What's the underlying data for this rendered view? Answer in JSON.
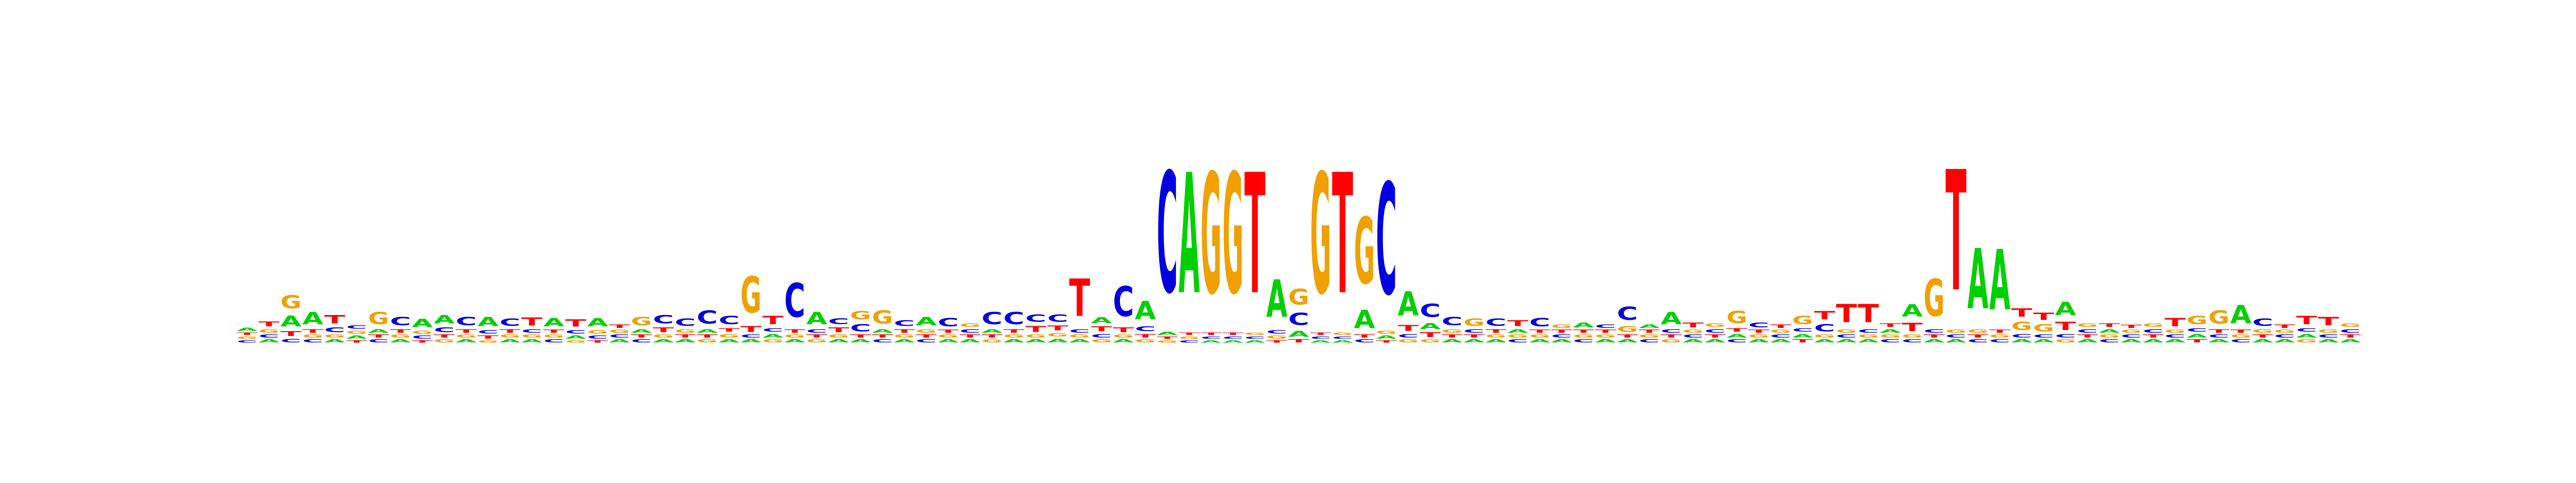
{
  "logo": {
    "type": "sequence-logo",
    "alphabet": [
      "A",
      "C",
      "G",
      "T"
    ],
    "colors": {
      "A": "#00d000",
      "C": "#0000e0",
      "G": "#f0a000",
      "T": "#ff0000"
    },
    "columns": [
      {
        "A": 0.05,
        "C": 0.04,
        "G": 0.04,
        "T": 0.04
      },
      {
        "A": 0.05,
        "C": 0.05,
        "G": 0.06,
        "T": 0.08
      },
      {
        "A": 0.18,
        "C": 0.06,
        "G": 0.22,
        "T": 0.08
      },
      {
        "A": 0.2,
        "C": 0.05,
        "G": 0.05,
        "T": 0.06
      },
      {
        "A": 0.05,
        "C": 0.08,
        "G": 0.05,
        "T": 0.14
      },
      {
        "A": 0.05,
        "C": 0.06,
        "G": 0.05,
        "T": 0.04
      },
      {
        "A": 0.06,
        "C": 0.05,
        "G": 0.2,
        "T": 0.05
      },
      {
        "A": 0.05,
        "C": 0.14,
        "G": 0.05,
        "T": 0.06
      },
      {
        "A": 0.14,
        "C": 0.05,
        "G": 0.05,
        "T": 0.04
      },
      {
        "A": 0.14,
        "C": 0.08,
        "G": 0.05,
        "T": 0.05
      },
      {
        "A": 0.05,
        "C": 0.14,
        "G": 0.05,
        "T": 0.06
      },
      {
        "A": 0.15,
        "C": 0.06,
        "G": 0.04,
        "T": 0.05
      },
      {
        "A": 0.05,
        "C": 0.12,
        "G": 0.05,
        "T": 0.06
      },
      {
        "A": 0.05,
        "C": 0.06,
        "G": 0.05,
        "T": 0.13
      },
      {
        "A": 0.14,
        "C": 0.05,
        "G": 0.05,
        "T": 0.05
      },
      {
        "A": 0.05,
        "C": 0.06,
        "G": 0.04,
        "T": 0.12
      },
      {
        "A": 0.14,
        "C": 0.05,
        "G": 0.06,
        "T": 0.04
      },
      {
        "A": 0.05,
        "C": 0.05,
        "G": 0.05,
        "T": 0.06
      },
      {
        "A": 0.06,
        "C": 0.05,
        "G": 0.14,
        "T": 0.05
      },
      {
        "A": 0.05,
        "C": 0.14,
        "G": 0.05,
        "T": 0.08
      },
      {
        "A": 0.05,
        "C": 0.12,
        "G": 0.06,
        "T": 0.05
      },
      {
        "A": 0.06,
        "C": 0.22,
        "G": 0.05,
        "T": 0.05
      },
      {
        "A": 0.05,
        "C": 0.14,
        "G": 0.06,
        "T": 0.06
      },
      {
        "A": 0.05,
        "C": 0.05,
        "G": 0.6,
        "T": 0.1
      },
      {
        "A": 0.06,
        "C": 0.06,
        "G": 0.05,
        "T": 0.14
      },
      {
        "A": 0.05,
        "C": 0.56,
        "G": 0.05,
        "T": 0.06
      },
      {
        "A": 0.2,
        "C": 0.06,
        "G": 0.05,
        "T": 0.05
      },
      {
        "A": 0.05,
        "C": 0.1,
        "G": 0.05,
        "T": 0.08
      },
      {
        "A": 0.05,
        "C": 0.12,
        "G": 0.14,
        "T": 0.05
      },
      {
        "A": 0.06,
        "C": 0.05,
        "G": 0.22,
        "T": 0.05
      },
      {
        "A": 0.05,
        "C": 0.1,
        "G": 0.05,
        "T": 0.06
      },
      {
        "A": 0.14,
        "C": 0.05,
        "G": 0.06,
        "T": 0.05
      },
      {
        "A": 0.05,
        "C": 0.14,
        "G": 0.05,
        "T": 0.05
      },
      {
        "A": 0.05,
        "C": 0.06,
        "G": 0.06,
        "T": 0.05
      },
      {
        "A": 0.06,
        "C": 0.2,
        "G": 0.05,
        "T": 0.05
      },
      {
        "A": 0.05,
        "C": 0.2,
        "G": 0.05,
        "T": 0.06
      },
      {
        "A": 0.05,
        "C": 0.12,
        "G": 0.05,
        "T": 0.1
      },
      {
        "A": 0.06,
        "C": 0.12,
        "G": 0.06,
        "T": 0.08
      },
      {
        "A": 0.05,
        "C": 0.06,
        "G": 0.05,
        "T": 0.62
      },
      {
        "A": 0.1,
        "C": 0.06,
        "G": 0.05,
        "T": 0.08
      },
      {
        "A": 0.05,
        "C": 0.5,
        "G": 0.05,
        "T": 0.08
      },
      {
        "A": 0.3,
        "C": 0.08,
        "G": 0.05,
        "T": 0.06
      },
      {
        "A": 0.05,
        "C": 2.0,
        "G": 0.04,
        "T": 0.04
      },
      {
        "A": 2.0,
        "C": 0.04,
        "G": 0.04,
        "T": 0.04
      },
      {
        "A": 0.04,
        "C": 0.04,
        "G": 2.0,
        "T": 0.04
      },
      {
        "A": 0.04,
        "C": 0.04,
        "G": 2.0,
        "T": 0.04
      },
      {
        "A": 0.04,
        "C": 0.04,
        "G": 0.04,
        "T": 2.0
      },
      {
        "A": 0.62,
        "C": 0.06,
        "G": 0.05,
        "T": 0.04
      },
      {
        "A": 0.1,
        "C": 0.2,
        "G": 0.26,
        "T": 0.05
      },
      {
        "A": 0.04,
        "C": 0.04,
        "G": 2.0,
        "T": 0.04
      },
      {
        "A": 0.04,
        "C": 0.04,
        "G": 0.04,
        "T": 2.0
      },
      {
        "A": 0.3,
        "C": 0.05,
        "G": 1.1,
        "T": 0.05
      },
      {
        "A": 0.05,
        "C": 1.85,
        "G": 0.05,
        "T": 0.04
      },
      {
        "A": 0.4,
        "C": 0.06,
        "G": 0.05,
        "T": 0.1
      },
      {
        "A": 0.1,
        "C": 0.22,
        "G": 0.05,
        "T": 0.08
      },
      {
        "A": 0.05,
        "C": 0.14,
        "G": 0.06,
        "T": 0.05
      },
      {
        "A": 0.05,
        "C": 0.06,
        "G": 0.12,
        "T": 0.05
      },
      {
        "A": 0.05,
        "C": 0.12,
        "G": 0.05,
        "T": 0.06
      },
      {
        "A": 0.06,
        "C": 0.05,
        "G": 0.05,
        "T": 0.1
      },
      {
        "A": 0.05,
        "C": 0.14,
        "G": 0.05,
        "T": 0.05
      },
      {
        "A": 0.05,
        "C": 0.05,
        "G": 0.06,
        "T": 0.05
      },
      {
        "A": 0.08,
        "C": 0.05,
        "G": 0.05,
        "T": 0.05
      },
      {
        "A": 0.05,
        "C": 0.06,
        "G": 0.05,
        "T": 0.05
      },
      {
        "A": 0.05,
        "C": 0.22,
        "G": 0.1,
        "T": 0.05
      },
      {
        "A": 0.06,
        "C": 0.05,
        "G": 0.05,
        "T": 0.05
      },
      {
        "A": 0.2,
        "C": 0.06,
        "G": 0.05,
        "T": 0.05
      },
      {
        "A": 0.05,
        "C": 0.05,
        "G": 0.05,
        "T": 0.08
      },
      {
        "A": 0.05,
        "C": 0.06,
        "G": 0.06,
        "T": 0.05
      },
      {
        "A": 0.06,
        "C": 0.05,
        "G": 0.2,
        "T": 0.06
      },
      {
        "A": 0.05,
        "C": 0.08,
        "G": 0.05,
        "T": 0.05
      },
      {
        "A": 0.05,
        "C": 0.05,
        "G": 0.05,
        "T": 0.06
      },
      {
        "A": 0.06,
        "C": 0.06,
        "G": 0.14,
        "T": 0.05
      },
      {
        "A": 0.05,
        "C": 0.12,
        "G": 0.05,
        "T": 0.14
      },
      {
        "A": 0.05,
        "C": 0.05,
        "G": 0.06,
        "T": 0.3
      },
      {
        "A": 0.05,
        "C": 0.06,
        "G": 0.05,
        "T": 0.3
      },
      {
        "A": 0.06,
        "C": 0.05,
        "G": 0.05,
        "T": 0.06
      },
      {
        "A": 0.2,
        "C": 0.05,
        "G": 0.05,
        "T": 0.14
      },
      {
        "A": 0.05,
        "C": 0.06,
        "G": 0.62,
        "T": 0.05
      },
      {
        "A": 0.05,
        "C": 0.05,
        "G": 0.05,
        "T": 2.0
      },
      {
        "A": 1.0,
        "C": 0.05,
        "G": 0.06,
        "T": 0.05
      },
      {
        "A": 1.0,
        "C": 0.05,
        "G": 0.05,
        "T": 0.05
      },
      {
        "A": 0.05,
        "C": 0.06,
        "G": 0.14,
        "T": 0.14
      },
      {
        "A": 0.05,
        "C": 0.05,
        "G": 0.12,
        "T": 0.12
      },
      {
        "A": 0.22,
        "C": 0.06,
        "G": 0.05,
        "T": 0.14
      },
      {
        "A": 0.05,
        "C": 0.06,
        "G": 0.06,
        "T": 0.05
      },
      {
        "A": 0.06,
        "C": 0.05,
        "G": 0.05,
        "T": 0.06
      },
      {
        "A": 0.05,
        "C": 0.05,
        "G": 0.05,
        "T": 0.05
      },
      {
        "A": 0.05,
        "C": 0.06,
        "G": 0.06,
        "T": 0.05
      },
      {
        "A": 0.05,
        "C": 0.05,
        "G": 0.05,
        "T": 0.14
      },
      {
        "A": 0.06,
        "C": 0.06,
        "G": 0.14,
        "T": 0.05
      },
      {
        "A": 0.05,
        "C": 0.05,
        "G": 0.22,
        "T": 0.06
      },
      {
        "A": 0.3,
        "C": 0.05,
        "G": 0.05,
        "T": 0.05
      },
      {
        "A": 0.05,
        "C": 0.12,
        "G": 0.06,
        "T": 0.05
      },
      {
        "A": 0.05,
        "C": 0.05,
        "G": 0.05,
        "T": 0.06
      },
      {
        "A": 0.06,
        "C": 0.06,
        "G": 0.05,
        "T": 0.14
      },
      {
        "A": 0.05,
        "C": 0.05,
        "G": 0.06,
        "T": 0.14
      },
      {
        "A": 0.05,
        "C": 0.06,
        "G": 0.06,
        "T": 0.05
      }
    ]
  }
}
